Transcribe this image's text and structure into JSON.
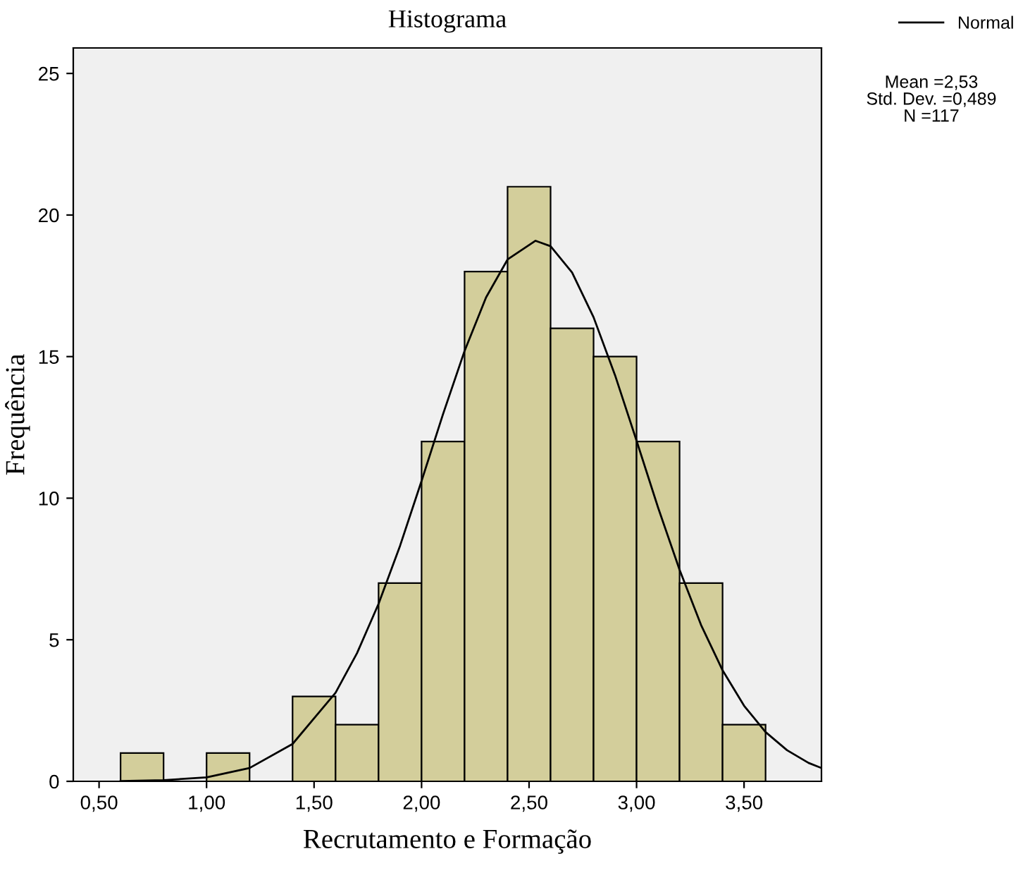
{
  "chart_data": {
    "type": "histogram",
    "title": "Histograma",
    "xlabel": "Recrutamento e Formação",
    "ylabel": "Frequência",
    "bins": [
      0.6,
      0.8,
      1.0,
      1.2,
      1.4,
      1.6,
      1.8,
      2.0,
      2.2,
      2.4,
      2.6,
      2.8,
      3.0,
      3.2,
      3.4,
      3.6
    ],
    "values": [
      1,
      0,
      1,
      0,
      3,
      2,
      7,
      12,
      18,
      21,
      16,
      15,
      12,
      7,
      2
    ],
    "color": "#d3ce9b",
    "series": [
      {
        "name": "Normal",
        "type": "line",
        "color": "#000000",
        "x": [
          0.6,
          0.8,
          1.0,
          1.2,
          1.4,
          1.6,
          1.7,
          1.8,
          1.9,
          2.0,
          2.1,
          2.2,
          2.3,
          2.4,
          2.53,
          2.6,
          2.7,
          2.8,
          2.9,
          3.0,
          3.1,
          3.2,
          3.3,
          3.4,
          3.5,
          3.6,
          3.7,
          3.8,
          3.86
        ],
        "values": [
          0.01,
          0.04,
          0.14,
          0.47,
          1.32,
          3.13,
          4.53,
          6.27,
          8.32,
          10.61,
          12.97,
          15.2,
          17.09,
          18.43,
          19.09,
          18.9,
          17.97,
          16.39,
          14.34,
          12.03,
          9.67,
          7.47,
          5.52,
          3.92,
          2.67,
          1.74,
          1.1,
          0.65,
          0.47
        ]
      }
    ],
    "annotations": [
      "Mean =2,53",
      "Std. Dev. =0,489",
      "N =117"
    ],
    "xlim": [
      0.38,
      3.86
    ],
    "xticks": [
      {
        "value": 0.5,
        "label": "0,50"
      },
      {
        "value": 1.0,
        "label": "1,00"
      },
      {
        "value": 1.5,
        "label": "1,50"
      },
      {
        "value": 2.0,
        "label": "2,00"
      },
      {
        "value": 2.5,
        "label": "2,50"
      },
      {
        "value": 3.0,
        "label": "3,00"
      },
      {
        "value": 3.5,
        "label": "3,50"
      }
    ],
    "ylim": [
      0,
      25.9
    ],
    "yticks": [
      0,
      5,
      10,
      15,
      20,
      25
    ],
    "grid": false,
    "legend": "top right"
  }
}
